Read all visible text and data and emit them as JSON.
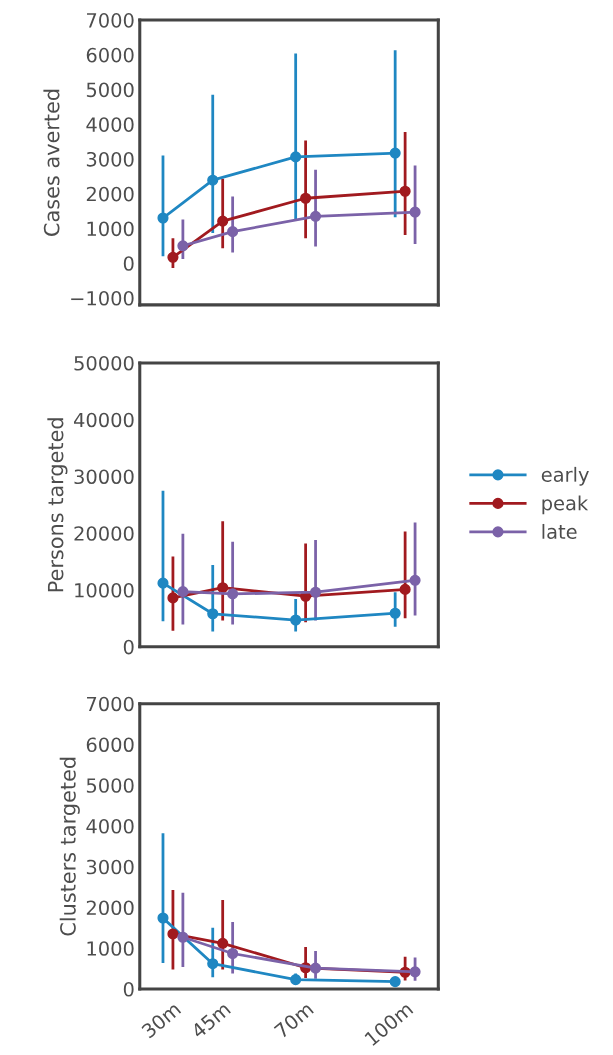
{
  "chart_data": [
    {
      "type": "line",
      "ylabel": "Cases averted",
      "xlim": [
        20,
        110
      ],
      "ylim": [
        -1200,
        7000
      ],
      "yticks": [
        {
          "value": -1000,
          "label": "−1000"
        },
        0,
        1000,
        2000,
        3000,
        4000,
        5000,
        6000,
        7000
      ],
      "tick_labels": "y",
      "marker": "circle",
      "grid": false,
      "legend": false,
      "series": [
        {
          "color": "#1f87c2",
          "x": [
            27,
            42,
            67,
            97
          ],
          "values": [
            1300,
            2390,
            3060,
            3170
          ],
          "errors": [
            [
              200,
              3100
            ],
            [
              870,
              4850
            ],
            [
              1270,
              6040
            ],
            [
              1320,
              6130
            ]
          ]
        },
        {
          "color": "#a11a1f",
          "x": [
            30,
            45,
            70,
            100
          ],
          "values": [
            170,
            1210,
            1870,
            2070
          ],
          "errors": [
            [
              -140,
              720
            ],
            [
              430,
              2430
            ],
            [
              720,
              3530
            ],
            [
              810,
              3780
            ]
          ]
        },
        {
          "color": "#7b62a8",
          "x": [
            33,
            48,
            73,
            103
          ],
          "values": [
            500,
            910,
            1350,
            1470
          ],
          "errors": [
            [
              120,
              1260
            ],
            [
              310,
              1920
            ],
            [
              480,
              2690
            ],
            [
              550,
              2810
            ]
          ]
        }
      ]
    },
    {
      "type": "line",
      "ylabel": "Persons targeted",
      "xlim": [
        20,
        110
      ],
      "ylim": [
        0,
        50000
      ],
      "yticks": [
        0,
        10000,
        20000,
        30000,
        40000,
        50000
      ],
      "tick_labels": "y",
      "marker": "circle",
      "grid": false,
      "legend": "right",
      "series": [
        {
          "name": "early",
          "color": "#1f87c2",
          "x": [
            27,
            42,
            67,
            97
          ],
          "values": [
            11200,
            5800,
            4700,
            5900
          ],
          "errors": [
            [
              4500,
              27500
            ],
            [
              2700,
              14400
            ],
            [
              2700,
              8400
            ],
            [
              3500,
              9600
            ]
          ]
        },
        {
          "name": "peak",
          "color": "#a11a1f",
          "x": [
            30,
            45,
            70,
            100
          ],
          "values": [
            8600,
            10400,
            8900,
            10100
          ],
          "errors": [
            [
              2800,
              15900
            ],
            [
              4600,
              22100
            ],
            [
              4300,
              18200
            ],
            [
              5000,
              20300
            ]
          ]
        },
        {
          "name": "late",
          "color": "#7b62a8",
          "x": [
            33,
            48,
            73,
            103
          ],
          "values": [
            9700,
            9300,
            9600,
            11700
          ],
          "errors": [
            [
              3900,
              19900
            ],
            [
              3900,
              18500
            ],
            [
              4600,
              18800
            ],
            [
              5500,
              21900
            ]
          ]
        }
      ]
    },
    {
      "type": "line",
      "ylabel": "Clusters targeted",
      "xlim": [
        20,
        110
      ],
      "ylim": [
        0,
        7000
      ],
      "yticks": [
        0,
        1000,
        2000,
        3000,
        4000,
        5000,
        6000,
        7000
      ],
      "xticks": [
        {
          "value": 30,
          "label": "30m"
        },
        {
          "value": 45,
          "label": "45m"
        },
        {
          "value": 70,
          "label": "70m"
        },
        {
          "value": 100,
          "label": "100m"
        }
      ],
      "marker": "circle",
      "grid": false,
      "legend": false,
      "series": [
        {
          "color": "#1f87c2",
          "x": [
            27,
            42,
            67,
            97
          ],
          "values": [
            1740,
            620,
            230,
            180
          ],
          "errors": [
            [
              640,
              3820
            ],
            [
              290,
              1500
            ],
            [
              150,
              380
            ],
            null
          ]
        },
        {
          "color": "#a11a1f",
          "x": [
            30,
            45,
            70,
            100
          ],
          "values": [
            1350,
            1120,
            520,
            410
          ],
          "errors": [
            [
              480,
              2430
            ],
            [
              480,
              2180
            ],
            [
              270,
              1030
            ],
            [
              210,
              790
            ]
          ]
        },
        {
          "color": "#7b62a8",
          "x": [
            33,
            48,
            73,
            103
          ],
          "values": [
            1270,
            870,
            510,
            420
          ],
          "errors": [
            [
              540,
              2360
            ],
            [
              380,
              1640
            ],
            [
              250,
              930
            ],
            [
              200,
              770
            ]
          ]
        }
      ]
    }
  ]
}
